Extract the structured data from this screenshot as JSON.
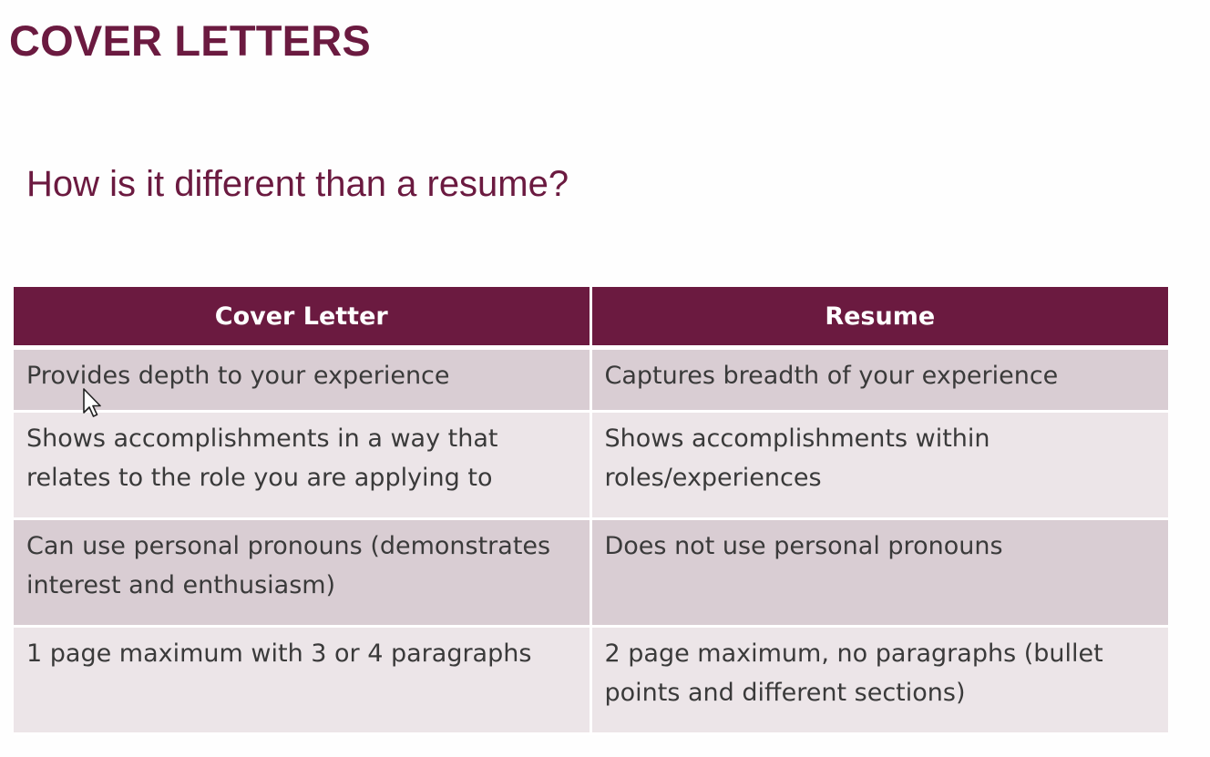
{
  "slide": {
    "title": "COVER LETTERS",
    "subtitle": "How is it different than a resume?"
  },
  "table": {
    "headers": [
      "Cover Letter",
      "Resume"
    ],
    "rows": [
      [
        "Provides depth to your experience",
        "Captures breadth of your experience"
      ],
      [
        "Shows accomplishments in a way that relates to the role you are applying to",
        "Shows accomplishments within roles/experiences"
      ],
      [
        "Can use personal pronouns (demonstrates interest and enthusiasm)",
        "Does not use personal pronouns"
      ],
      [
        "1 page maximum with 3 or 4 paragraphs",
        "2 page maximum, no paragraphs (bullet points and different sections)"
      ]
    ]
  },
  "colors": {
    "accent": "#6b1a40",
    "row_dark": "#d9cdd3",
    "row_light": "#ece5e8"
  },
  "icons": {
    "cursor": "mouse-pointer-icon"
  }
}
